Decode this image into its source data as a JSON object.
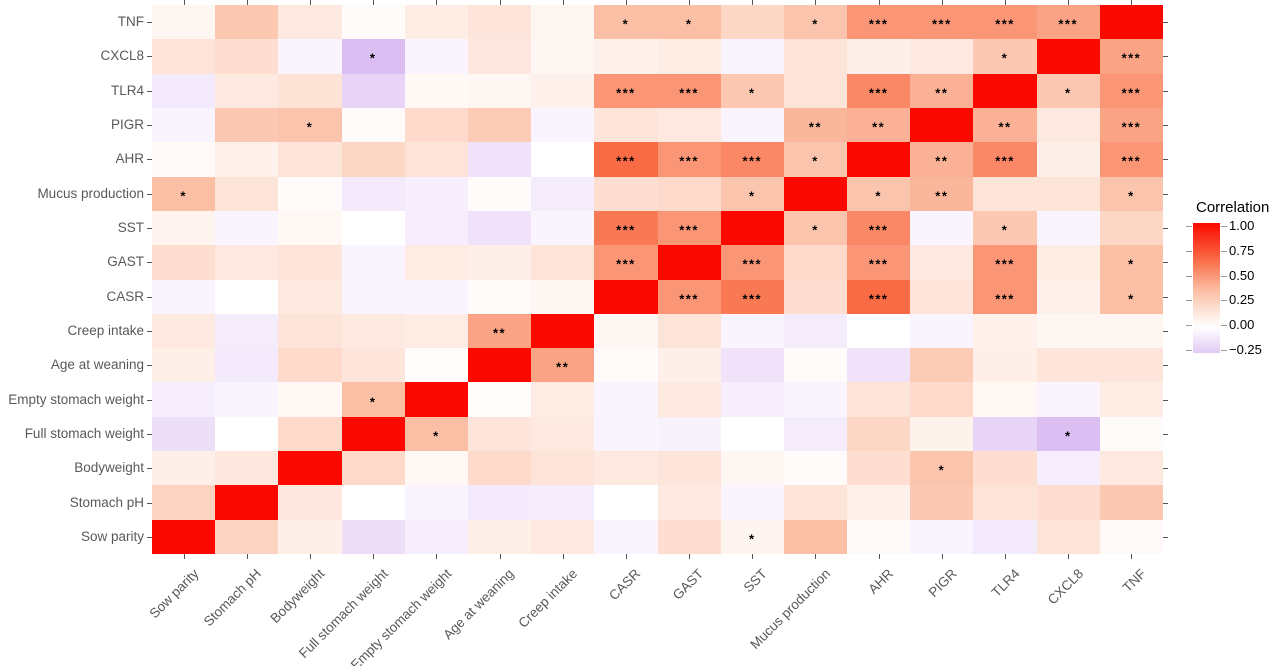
{
  "chart_data": {
    "type": "heatmap",
    "description": "Correlation matrix heatmap with significance stars",
    "legend": {
      "title": "Correlation",
      "tick_labels": [
        "1.00",
        "0.75",
        "0.50",
        "0.25",
        "0.00",
        "−0.25"
      ],
      "tick_values": [
        1.0,
        0.75,
        0.5,
        0.25,
        0.0,
        -0.25
      ],
      "position": "right"
    },
    "x_labels": [
      "Sow parity",
      "Stomach pH",
      "Bodyweight",
      "Full stomach weight",
      "Empty stomach weight",
      "Age at weaning",
      "Creep intake",
      "CASR",
      "GAST",
      "SST",
      "Mucus production",
      "AHR",
      "PIGR",
      "TLR4",
      "CXCL8",
      "TNF"
    ],
    "y_labels": [
      "TNF",
      "CXCL8",
      "TLR4",
      "PIGR",
      "AHR",
      "Mucus production",
      "SST",
      "GAST",
      "CASR",
      "Creep intake",
      "Age at weaning",
      "Empty stomach weight",
      "Full stomach weight",
      "Bodyweight",
      "Stomach pH",
      "Sow parity"
    ],
    "values": [
      [
        0.05,
        0.3,
        0.12,
        0.02,
        0.1,
        0.14,
        0.05,
        0.35,
        0.35,
        0.22,
        0.32,
        0.5,
        0.5,
        0.5,
        0.45,
        1.0
      ],
      [
        0.15,
        0.18,
        -0.05,
        -0.3,
        -0.05,
        0.13,
        0.05,
        0.08,
        0.1,
        -0.05,
        0.15,
        0.09,
        0.12,
        0.3,
        1.0,
        0.45
      ],
      [
        -0.1,
        0.12,
        0.16,
        -0.2,
        0.04,
        0.05,
        0.08,
        0.5,
        0.5,
        0.3,
        0.15,
        0.55,
        0.4,
        1.0,
        0.3,
        0.5
      ],
      [
        -0.05,
        0.3,
        0.32,
        0.02,
        0.2,
        0.28,
        -0.05,
        0.14,
        0.12,
        -0.05,
        0.38,
        0.4,
        1.0,
        0.4,
        0.12,
        0.45
      ],
      [
        0.03,
        0.08,
        0.15,
        0.22,
        0.15,
        -0.13,
        0.0,
        0.65,
        0.5,
        0.55,
        0.32,
        1.0,
        0.4,
        0.55,
        0.09,
        0.5
      ],
      [
        0.35,
        0.15,
        0.02,
        -0.1,
        -0.07,
        0.02,
        -0.09,
        0.18,
        0.2,
        0.32,
        1.0,
        0.32,
        0.38,
        0.15,
        0.15,
        0.32
      ],
      [
        0.06,
        -0.05,
        0.04,
        0.0,
        -0.08,
        -0.13,
        -0.05,
        0.6,
        0.5,
        1.0,
        0.32,
        0.55,
        -0.05,
        0.3,
        -0.05,
        0.22
      ],
      [
        0.18,
        0.12,
        0.14,
        -0.05,
        0.11,
        0.09,
        0.15,
        0.5,
        1.0,
        0.5,
        0.2,
        0.5,
        0.12,
        0.5,
        0.1,
        0.35
      ],
      [
        -0.05,
        0.0,
        0.12,
        -0.05,
        -0.05,
        0.02,
        0.05,
        1.0,
        0.5,
        0.6,
        0.18,
        0.65,
        0.14,
        0.5,
        0.08,
        0.35
      ],
      [
        0.12,
        -0.09,
        0.15,
        0.12,
        0.11,
        0.45,
        1.0,
        0.05,
        0.15,
        -0.05,
        -0.09,
        0.0,
        -0.05,
        0.08,
        0.05,
        0.05
      ],
      [
        0.09,
        -0.1,
        0.2,
        0.14,
        0.01,
        1.0,
        0.45,
        0.02,
        0.09,
        -0.13,
        0.02,
        -0.13,
        0.28,
        0.09,
        0.14,
        0.14
      ],
      [
        -0.08,
        -0.05,
        0.04,
        0.35,
        1.0,
        0.01,
        0.11,
        -0.05,
        0.12,
        -0.08,
        -0.05,
        0.15,
        0.2,
        0.04,
        -0.05,
        0.1
      ],
      [
        -0.15,
        0.0,
        0.2,
        1.0,
        0.35,
        0.14,
        0.12,
        -0.05,
        -0.06,
        0.0,
        -0.09,
        0.22,
        0.07,
        -0.2,
        -0.3,
        0.02
      ],
      [
        0.09,
        0.13,
        1.0,
        0.2,
        0.04,
        0.2,
        0.15,
        0.12,
        0.14,
        0.05,
        0.02,
        0.18,
        0.32,
        0.18,
        -0.08,
        0.12
      ],
      [
        0.24,
        1.0,
        0.13,
        0.0,
        -0.05,
        -0.1,
        -0.09,
        0.0,
        0.12,
        -0.05,
        0.15,
        0.08,
        0.3,
        0.15,
        0.18,
        0.3
      ],
      [
        1.0,
        0.24,
        0.09,
        -0.15,
        -0.08,
        0.09,
        0.12,
        -0.05,
        0.18,
        0.06,
        0.35,
        0.03,
        -0.05,
        -0.1,
        0.15,
        0.03
      ]
    ],
    "stars": [
      [
        "",
        "",
        "",
        "",
        "",
        "",
        "",
        "*",
        "*",
        "",
        "*",
        "***",
        "***",
        "***",
        "***",
        ""
      ],
      [
        "",
        "",
        "",
        "*",
        "",
        "",
        "",
        "",
        "",
        "",
        "",
        "",
        "",
        "*",
        "",
        "***"
      ],
      [
        "",
        "",
        "",
        "",
        "",
        "",
        "",
        "***",
        "***",
        "*",
        "",
        "***",
        "**",
        "",
        "*",
        "***"
      ],
      [
        "",
        "",
        "*",
        "",
        "",
        "",
        "",
        "",
        "",
        "",
        "**",
        "**",
        "",
        "**",
        "",
        "***"
      ],
      [
        "",
        "",
        "",
        "",
        "",
        "",
        "",
        "***",
        "***",
        "***",
        "*",
        "",
        "**",
        "***",
        "",
        "***"
      ],
      [
        "*",
        "",
        "",
        "",
        "",
        "",
        "",
        "",
        "",
        "*",
        "",
        "*",
        "**",
        "",
        "",
        "*"
      ],
      [
        "",
        "",
        "",
        "",
        "",
        "",
        "",
        "***",
        "***",
        "",
        "*",
        "***",
        "",
        "*",
        "",
        ""
      ],
      [
        "",
        "",
        "",
        "",
        "",
        "",
        "",
        "***",
        "",
        "***",
        "",
        "***",
        "",
        "***",
        "",
        "*"
      ],
      [
        "",
        "",
        "",
        "",
        "",
        "",
        "",
        "",
        "***",
        "***",
        "",
        "***",
        "",
        "***",
        "",
        "*"
      ],
      [
        "",
        "",
        "",
        "",
        "",
        "**",
        "",
        "",
        "",
        "",
        "",
        "",
        "",
        "",
        "",
        ""
      ],
      [
        "",
        "",
        "",
        "",
        "",
        "",
        "**",
        "",
        "",
        "",
        "",
        "",
        "",
        "",
        "",
        ""
      ],
      [
        "",
        "",
        "",
        "*",
        "",
        "",
        "",
        "",
        "",
        "",
        "",
        "",
        "",
        "",
        "",
        ""
      ],
      [
        "",
        "",
        "",
        "",
        "*",
        "",
        "",
        "",
        "",
        "",
        "",
        "",
        "",
        "",
        "*",
        ""
      ],
      [
        "",
        "",
        "",
        "",
        "",
        "",
        "",
        "",
        "",
        "",
        "",
        "",
        "*",
        "",
        "",
        ""
      ],
      [
        "",
        "",
        "",
        "",
        "",
        "",
        "",
        "",
        "",
        "",
        "",
        "",
        "",
        "",
        "",
        ""
      ],
      [
        "",
        "",
        "",
        "",
        "",
        "",
        "",
        "",
        "",
        "*",
        "",
        "",
        "",
        "",
        "",
        ""
      ]
    ],
    "color_scale": {
      "anchors": [
        [
          -0.3,
          "#DCBFF2"
        ],
        [
          0.0,
          "#FFFFFF"
        ],
        [
          0.35,
          "#FBBFA5"
        ],
        [
          0.65,
          "#F96B45"
        ],
        [
          1.0,
          "#FB0900"
        ]
      ],
      "low_color": "#DCBFF2",
      "mid_color": "#FFFFFF",
      "high_color": "#FB0900"
    },
    "axis_text_color": "#595959",
    "grid": false
  }
}
